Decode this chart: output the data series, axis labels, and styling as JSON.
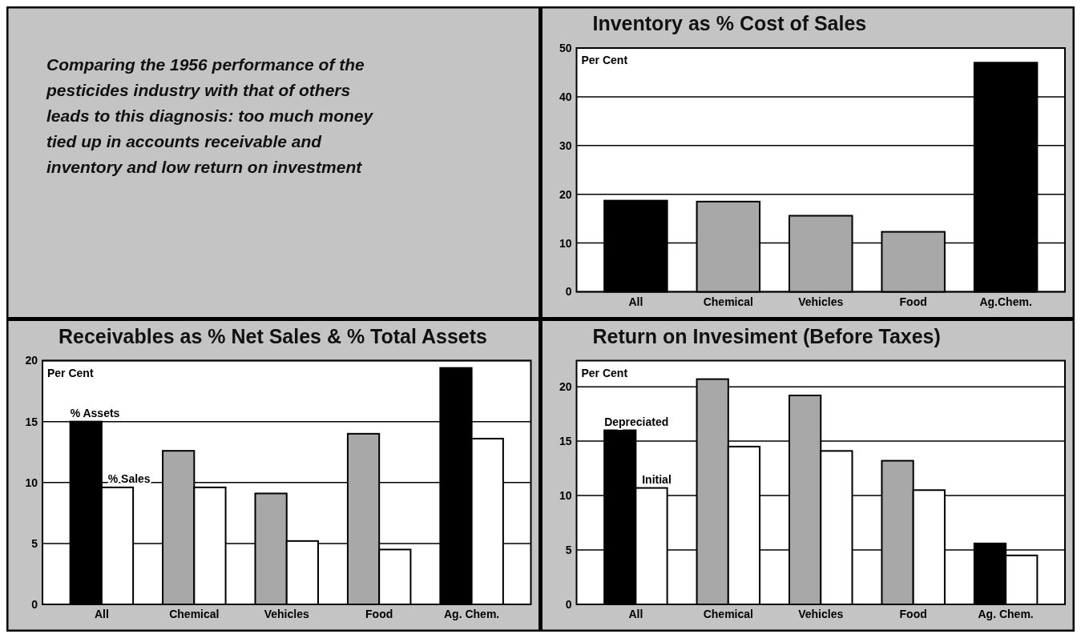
{
  "chart_data": [
    {
      "type": "other",
      "annotations": [
        "Comparing the 1956 performance of the pesticides industry with that of others leads to this diagnosis: too much money tied up in accounts receivable and inventory and low return on investment"
      ]
    },
    {
      "type": "bar",
      "title": "Inventory as % Cost of Sales",
      "ylabel": "Per Cent",
      "categories": [
        "All",
        "Chemical",
        "Vehicles",
        "Food",
        "Ag.Chem."
      ],
      "values": [
        18.7,
        18.5,
        15.6,
        12.3,
        47
      ],
      "colors": [
        "#000000",
        "#a8a8a8",
        "#a8a8a8",
        "#a8a8a8",
        "#000000"
      ],
      "ylim": [
        0,
        50
      ],
      "yticks": [
        0,
        10,
        20,
        30,
        40,
        50
      ],
      "grid": "y"
    },
    {
      "type": "bar",
      "title": "Receivables as % Net Sales & % Total Assets",
      "ylabel": "Per Cent",
      "categories": [
        "All",
        "Chemical",
        "Vehicles",
        "Food",
        "Ag. Chem."
      ],
      "series": [
        {
          "name": "% Assets",
          "colors": [
            "#000000",
            "#a8a8a8",
            "#a8a8a8",
            "#a8a8a8",
            "#000000"
          ],
          "values": [
            15,
            12.6,
            9.1,
            14,
            19.4
          ]
        },
        {
          "name": "% Sales",
          "color": "#ffffff",
          "values": [
            9.6,
            9.6,
            5.2,
            4.5,
            13.6
          ]
        }
      ],
      "ylim": [
        0,
        20
      ],
      "yticks": [
        0,
        5,
        10,
        15,
        20
      ],
      "grid": "y"
    },
    {
      "type": "bar",
      "title": "Return on Invesiment (Before Taxes)",
      "ylabel": "Per Cent",
      "categories": [
        "All",
        "Chemical",
        "Vehicles",
        "Food",
        "Ag. Chem."
      ],
      "series": [
        {
          "name": "Depreciated",
          "colors": [
            "#000000",
            "#a8a8a8",
            "#a8a8a8",
            "#a8a8a8",
            "#000000"
          ],
          "values": [
            16,
            20.7,
            19.2,
            13.2,
            5.6
          ]
        },
        {
          "name": "Initial",
          "color": "#ffffff",
          "values": [
            10.7,
            14.5,
            14.1,
            10.5,
            4.5
          ]
        }
      ],
      "ylim": [
        0,
        22.4
      ],
      "yticks": [
        0,
        5,
        10,
        15,
        20
      ],
      "grid": "y"
    }
  ]
}
